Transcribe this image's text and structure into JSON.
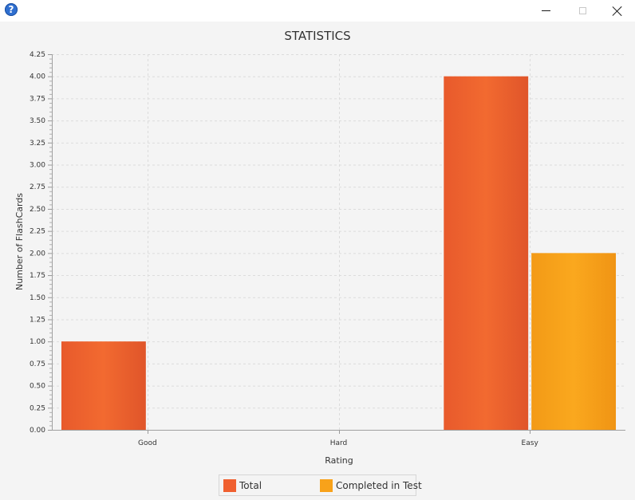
{
  "window": {
    "icon": "help-question-icon",
    "controls": [
      "minimize-icon",
      "maximize-icon",
      "close-icon"
    ]
  },
  "colors": {
    "total": "#f06030",
    "completed": "#f8a21a",
    "background": "#f4f4f4",
    "grid": "#dddddd"
  },
  "chart_data": {
    "type": "bar",
    "title": "STATISTICS",
    "xlabel": "Rating",
    "ylabel": "Number of FlashCards",
    "categories": [
      "Good",
      "Hard",
      "Easy"
    ],
    "series": [
      {
        "name": "Total",
        "values": [
          1,
          0,
          4
        ]
      },
      {
        "name": "Completed in Test",
        "values": [
          0,
          0,
          2
        ]
      }
    ],
    "ylim": [
      0,
      4.25
    ],
    "ytick_step": 0.25,
    "ytick_labels": [
      "0.00",
      "0.25",
      "0.50",
      "0.75",
      "1.00",
      "1.25",
      "1.50",
      "1.75",
      "2.00",
      "2.25",
      "2.50",
      "2.75",
      "3.00",
      "3.25",
      "3.50",
      "3.75",
      "4.00",
      "4.25"
    ],
    "grid": true,
    "legend_position": "bottom-center"
  }
}
